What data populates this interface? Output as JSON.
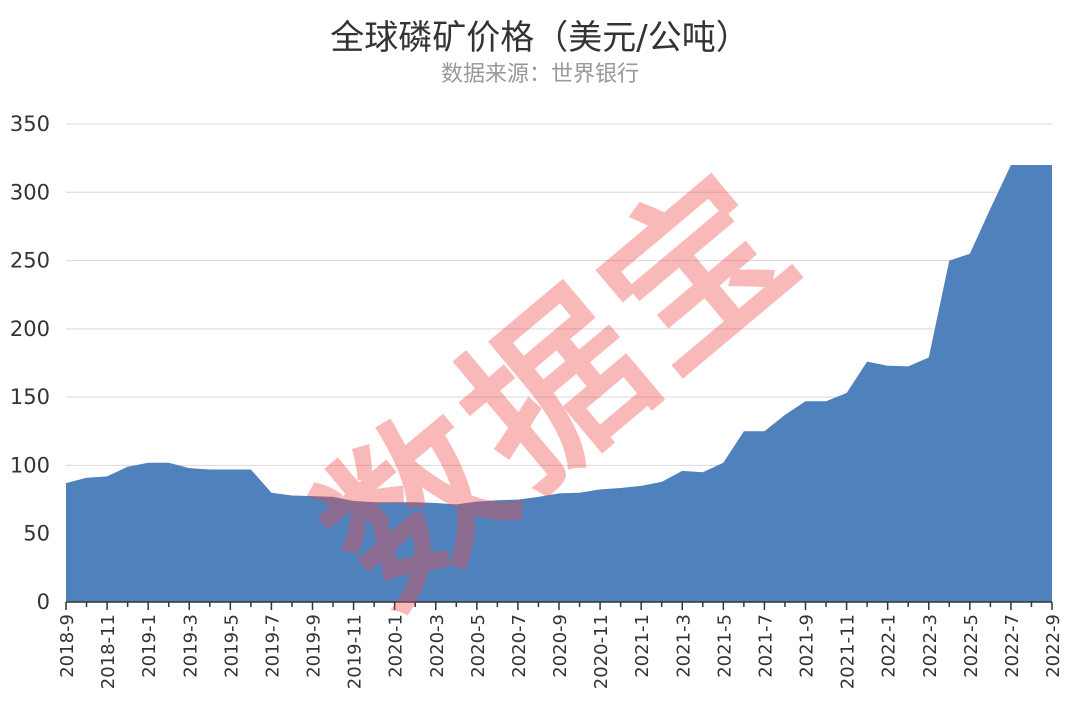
{
  "watermark": "数据宝",
  "colors": {
    "area": "#4f81bd",
    "grid": "#d9d9d9",
    "axis": "#333333"
  },
  "chart_data": {
    "type": "area",
    "title": "全球磷矿价格（美元/公吨）",
    "subtitle": "数据来源：世界银行",
    "xlabel": "",
    "ylabel": "",
    "ylim": [
      0,
      350
    ],
    "yticks": [
      0,
      50,
      100,
      150,
      200,
      250,
      300,
      350
    ],
    "grid": true,
    "legend": "none",
    "x": [
      "2018-9",
      "2018-10",
      "2018-11",
      "2018-12",
      "2019-1",
      "2019-2",
      "2019-3",
      "2019-4",
      "2019-5",
      "2019-6",
      "2019-7",
      "2019-8",
      "2019-9",
      "2019-10",
      "2019-11",
      "2019-12",
      "2020-1",
      "2020-2",
      "2020-3",
      "2020-4",
      "2020-5",
      "2020-6",
      "2020-7",
      "2020-8",
      "2020-9",
      "2020-10",
      "2020-11",
      "2020-12",
      "2021-1",
      "2021-2",
      "2021-3",
      "2021-4",
      "2021-5",
      "2021-6",
      "2021-7",
      "2021-8",
      "2021-9",
      "2021-10",
      "2021-11",
      "2021-12",
      "2022-1",
      "2022-2",
      "2022-3",
      "2022-4",
      "2022-5",
      "2022-6",
      "2022-7",
      "2022-8",
      "2022-9"
    ],
    "x_tick_labels": [
      "2018-9",
      "2018-11",
      "2019-1",
      "2019-3",
      "2019-5",
      "2019-7",
      "2019-9",
      "2019-11",
      "2020-1",
      "2020-3",
      "2020-5",
      "2020-7",
      "2020-9",
      "2020-11",
      "2021-1",
      "2021-3",
      "2021-5",
      "2021-7",
      "2021-9",
      "2021-11",
      "2022-1",
      "2022-3",
      "2022-5",
      "2022-7",
      "2022-9"
    ],
    "series": [
      {
        "values": [
          87,
          91,
          92,
          99,
          102,
          102,
          98,
          97,
          97,
          97,
          80,
          78,
          77.5,
          77,
          74,
          73,
          73,
          73,
          72.5,
          71.5,
          73.5,
          74.5,
          75,
          77,
          79.5,
          80,
          82.5,
          83.5,
          85,
          88,
          96,
          95,
          102,
          125,
          125,
          137,
          147,
          147,
          153,
          176,
          173,
          172.5,
          179,
          250,
          255,
          288,
          320,
          320,
          320
        ]
      }
    ]
  }
}
